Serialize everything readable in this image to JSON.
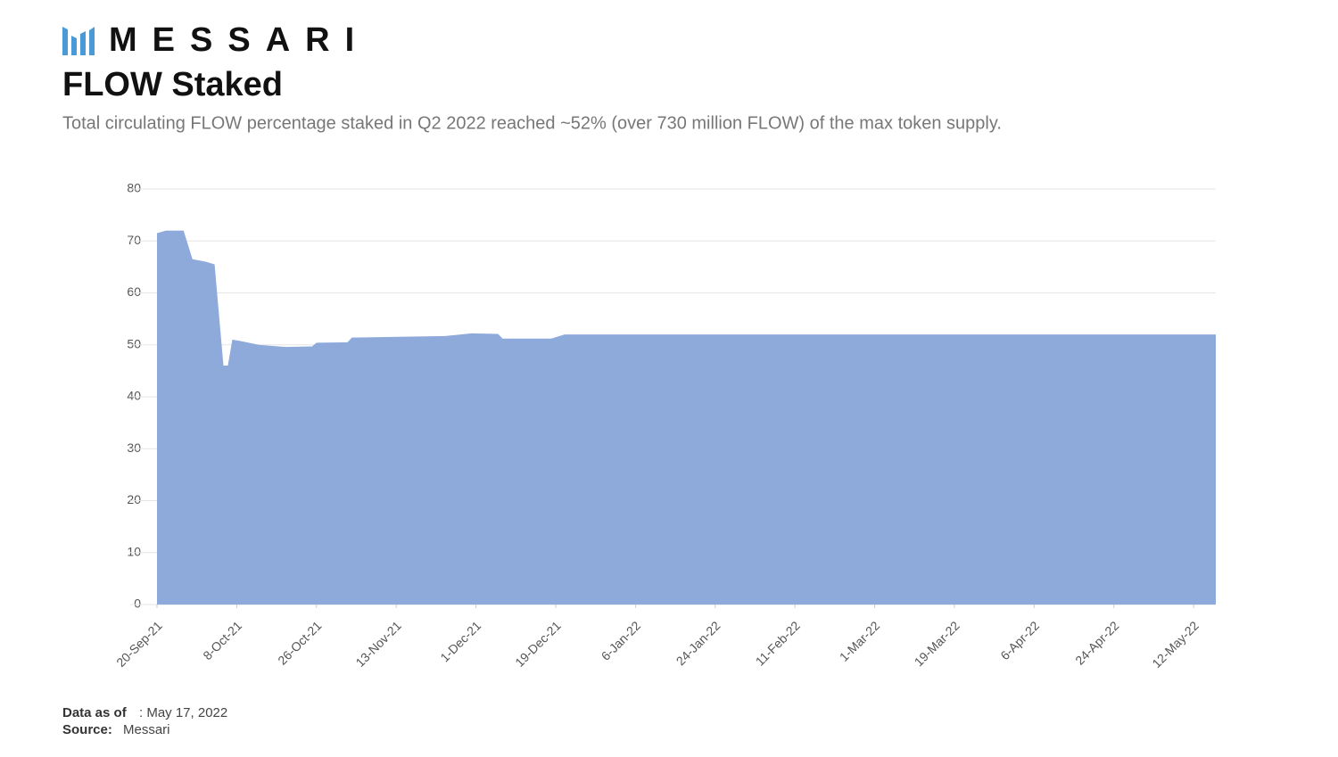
{
  "header": {
    "logo": "MESSARI",
    "title": "FLOW Staked",
    "subtitle": "Total circulating FLOW percentage staked in Q2 2022 reached ~52% (over 730 million FLOW) of the max token supply."
  },
  "chart_data": {
    "type": "area",
    "color": "#8eaadb",
    "grid": true,
    "x": [
      "2021-09-20",
      "2021-09-22",
      "2021-09-26",
      "2021-09-28",
      "2021-10-01",
      "2021-10-03",
      "2021-10-05",
      "2021-10-06",
      "2021-10-07",
      "2021-10-09",
      "2021-10-13",
      "2021-10-19",
      "2021-10-25",
      "2021-10-26",
      "2021-11-02",
      "2021-11-03",
      "2021-11-24",
      "2021-11-30",
      "2021-12-06",
      "2021-12-07",
      "2021-12-18",
      "2021-12-21",
      "2022-05-17"
    ],
    "values": [
      71.5,
      72,
      72,
      66.5,
      66,
      65.5,
      46,
      46,
      51,
      50.7,
      50,
      49.6,
      49.7,
      50.4,
      50.5,
      51.4,
      51.7,
      52.2,
      52.1,
      51.2,
      51.2,
      52,
      52
    ],
    "xlim": [
      "2021-09-20",
      "2022-05-17"
    ],
    "xticks": [
      {
        "value": "2021-09-20",
        "label": "20-Sep-21"
      },
      {
        "value": "2021-10-08",
        "label": "8-Oct-21"
      },
      {
        "value": "2021-10-26",
        "label": "26-Oct-21"
      },
      {
        "value": "2021-11-13",
        "label": "13-Nov-21"
      },
      {
        "value": "2021-12-01",
        "label": "1-Dec-21"
      },
      {
        "value": "2021-12-19",
        "label": "19-Dec-21"
      },
      {
        "value": "2022-01-06",
        "label": "6-Jan-22"
      },
      {
        "value": "2022-01-24",
        "label": "24-Jan-22"
      },
      {
        "value": "2022-02-11",
        "label": "11-Feb-22"
      },
      {
        "value": "2022-03-01",
        "label": "1-Mar-22"
      },
      {
        "value": "2022-03-19",
        "label": "19-Mar-22"
      },
      {
        "value": "2022-04-06",
        "label": "6-Apr-22"
      },
      {
        "value": "2022-04-24",
        "label": "24-Apr-22"
      },
      {
        "value": "2022-05-12",
        "label": "12-May-22"
      }
    ],
    "ylim": [
      0,
      80
    ],
    "yticks": [
      0,
      10,
      20,
      30,
      40,
      50,
      60,
      70,
      80
    ]
  },
  "footer": {
    "date_label": "Data as of",
    "date": ": May 17, 2022",
    "source_label": "Source:",
    "source": "Messari"
  }
}
